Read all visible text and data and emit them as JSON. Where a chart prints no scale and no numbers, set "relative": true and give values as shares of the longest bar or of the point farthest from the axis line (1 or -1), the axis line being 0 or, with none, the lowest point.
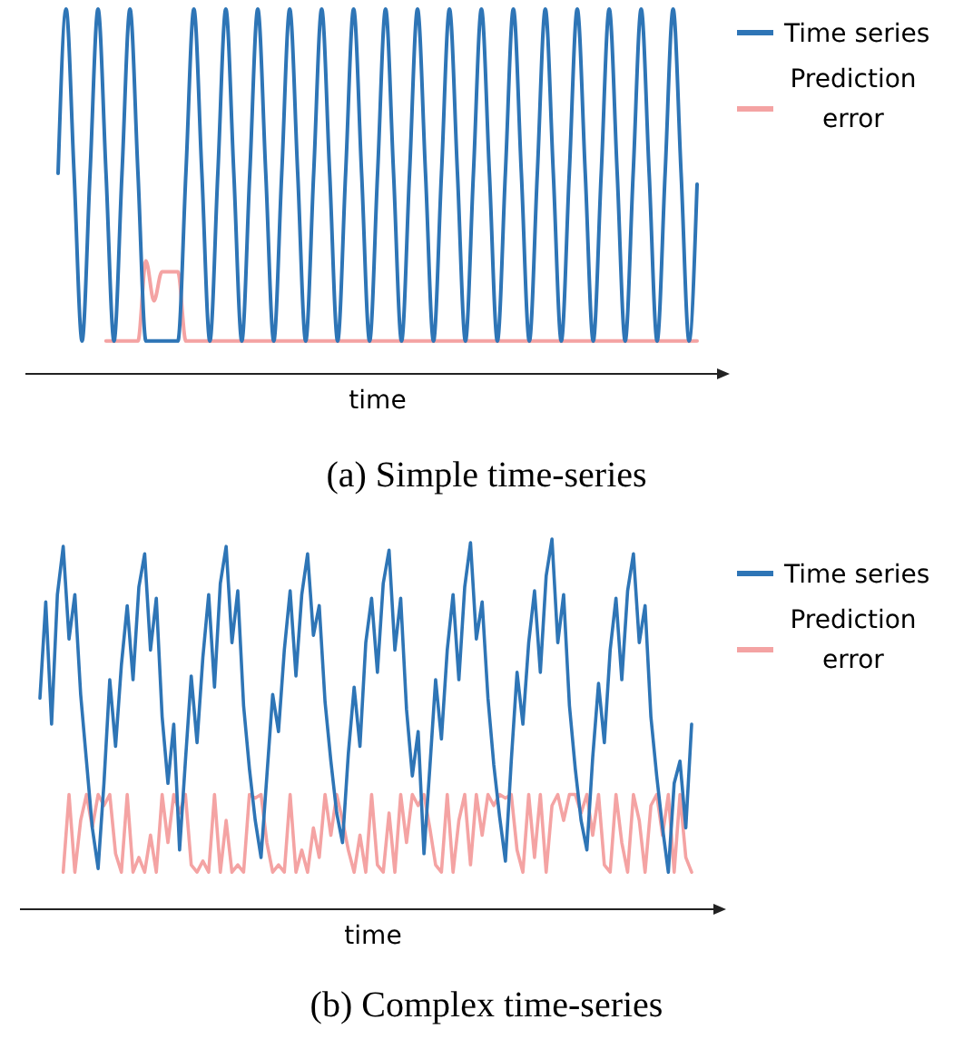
{
  "chart_data": [
    {
      "type": "line",
      "title": "(a) Simple time-series",
      "xlabel": "time",
      "relative": true,
      "legend": "right",
      "categories": [
        null,
        null,
        null,
        null,
        null,
        null,
        null,
        null,
        null,
        null,
        null,
        null,
        null,
        null,
        null,
        null,
        null,
        null,
        null,
        null,
        null,
        null,
        null,
        null,
        null,
        null,
        null,
        null,
        null,
        null,
        null,
        null,
        null,
        null,
        null,
        null,
        null,
        null,
        null,
        null,
        null,
        null,
        null,
        null,
        null,
        null,
        null,
        null,
        null,
        null,
        null,
        null,
        null,
        null,
        null,
        null,
        null,
        null,
        null,
        null,
        null,
        null,
        null,
        null,
        null,
        null,
        null,
        null,
        null,
        null,
        null,
        null,
        null,
        null,
        null,
        null,
        null,
        null,
        null,
        null,
        null
      ],
      "series": [
        {
          "name": "Prediction error",
          "color": "#f4a3a3",
          "values": [
            null,
            null,
            null,
            null,
            null,
            null,
            0.09,
            0.09,
            0.09,
            0.09,
            0.09,
            0.31,
            0.2,
            0.28,
            0.28,
            0.28,
            0.09,
            0.09,
            0.09,
            0.09,
            0.09,
            0.09,
            0.09,
            0.09,
            0.09,
            0.09,
            0.09,
            0.09,
            0.09,
            0.09,
            0.09,
            0.09,
            0.09,
            0.09,
            0.09,
            0.09,
            0.09,
            0.09,
            0.09,
            0.09,
            0.09,
            0.09,
            0.09,
            0.09,
            0.09,
            0.09,
            0.09,
            0.09,
            0.09,
            0.09,
            0.09,
            0.09,
            0.09,
            0.09,
            0.09,
            0.09,
            0.09,
            0.09,
            0.09,
            0.09,
            0.09,
            0.09,
            0.09,
            0.09,
            0.09,
            0.09,
            0.09,
            0.09,
            0.09,
            0.09,
            0.09,
            0.09,
            0.09,
            0.09,
            0.09,
            0.09,
            0.09,
            0.09,
            0.09,
            0.09,
            0.09
          ]
        },
        {
          "name": "Time series",
          "color": "#2e75b6",
          "values": [
            0.55,
            1,
            0.55,
            0.09,
            0.55,
            1,
            0.55,
            0.09,
            0.55,
            1,
            0.55,
            0.09,
            0.09,
            0.09,
            0.09,
            0.09,
            0.55,
            1,
            0.55,
            0.09,
            0.55,
            1,
            0.55,
            0.09,
            0.55,
            1,
            0.55,
            0.09,
            0.55,
            1,
            0.55,
            0.09,
            0.55,
            1,
            0.55,
            0.09,
            0.55,
            1,
            0.55,
            0.09,
            0.55,
            1,
            0.55,
            0.09,
            0.55,
            1,
            0.55,
            0.09,
            0.55,
            1,
            0.55,
            0.09,
            0.55,
            1,
            0.55,
            0.09,
            0.55,
            1,
            0.55,
            0.09,
            0.55,
            1,
            0.55,
            0.09,
            0.55,
            1,
            0.55,
            0.09,
            0.55,
            1,
            0.55,
            0.09,
            0.55,
            1,
            0.55,
            0.09,
            0.55,
            1,
            0.55,
            0.09,
            0.52
          ]
        }
      ]
    },
    {
      "type": "line",
      "title": "(b) Complex time-series",
      "xlabel": "time",
      "relative": true,
      "legend": "right",
      "categories": [
        null,
        null,
        null,
        null,
        null,
        null,
        null,
        null,
        null,
        null,
        null,
        null,
        null,
        null,
        null,
        null,
        null,
        null,
        null,
        null,
        null,
        null,
        null,
        null,
        null,
        null,
        null,
        null,
        null,
        null,
        null,
        null,
        null,
        null,
        null,
        null,
        null,
        null,
        null,
        null,
        null,
        null,
        null,
        null,
        null,
        null,
        null,
        null,
        null,
        null,
        null,
        null,
        null,
        null,
        null,
        null,
        null,
        null,
        null,
        null,
        null,
        null,
        null,
        null,
        null,
        null,
        null,
        null,
        null,
        null,
        null,
        null,
        null,
        null,
        null,
        null,
        null,
        null,
        null,
        null,
        null,
        null,
        null,
        null,
        null,
        null,
        null,
        null,
        null,
        null,
        null,
        null,
        null,
        null,
        null,
        null,
        null,
        null,
        null,
        null,
        null,
        null,
        null,
        null,
        null,
        null,
        null,
        null,
        null,
        null,
        null,
        null,
        null
      ],
      "series": [
        {
          "name": "Prediction error",
          "color": "#f4a3a3",
          "values": [
            null,
            null,
            null,
            null,
            0.1,
            0.31,
            0.1,
            0.24,
            0.31,
            0.22,
            0.31,
            0.28,
            0.31,
            0.15,
            0.1,
            0.31,
            0.1,
            0.14,
            0.1,
            0.2,
            0.1,
            0.31,
            0.18,
            0.31,
            0.26,
            0.31,
            0.12,
            0.1,
            0.13,
            0.1,
            0.31,
            0.1,
            0.24,
            0.1,
            0.12,
            0.1,
            0.31,
            0.3,
            0.31,
            0.18,
            0.1,
            0.12,
            0.1,
            0.31,
            0.1,
            0.16,
            0.1,
            0.22,
            0.14,
            0.31,
            0.2,
            0.31,
            0.24,
            0.16,
            0.1,
            0.2,
            0.1,
            0.31,
            0.12,
            0.1,
            0.26,
            0.1,
            0.31,
            0.18,
            0.31,
            0.28,
            0.31,
            0.22,
            0.12,
            0.1,
            0.31,
            0.1,
            0.24,
            0.31,
            0.12,
            0.31,
            0.2,
            0.31,
            0.28,
            0.31,
            0.3,
            0.31,
            0.16,
            0.1,
            0.31,
            0.14,
            0.31,
            0.1,
            0.28,
            0.31,
            0.24,
            0.31,
            0.31,
            0.26,
            0.31,
            0.2,
            0.31,
            0.12,
            0.1,
            0.31,
            0.18,
            0.1,
            0.31,
            0.24,
            0.1,
            0.28,
            0.31,
            0.2,
            0.31,
            0.1,
            0.31,
            0.14,
            0.1
          ]
        },
        {
          "name": "Time series",
          "color": "#2e75b6",
          "values": [
            0.57,
            0.83,
            0.5,
            0.85,
            0.98,
            0.73,
            0.85,
            0.58,
            0.4,
            0.22,
            0.11,
            0.34,
            0.62,
            0.44,
            0.66,
            0.82,
            0.62,
            0.87,
            0.96,
            0.7,
            0.84,
            0.52,
            0.34,
            0.5,
            0.16,
            0.4,
            0.63,
            0.45,
            0.68,
            0.85,
            0.6,
            0.88,
            0.98,
            0.72,
            0.86,
            0.55,
            0.38,
            0.24,
            0.14,
            0.36,
            0.58,
            0.48,
            0.7,
            0.86,
            0.63,
            0.85,
            0.96,
            0.74,
            0.82,
            0.56,
            0.4,
            0.26,
            0.18,
            0.42,
            0.6,
            0.44,
            0.72,
            0.84,
            0.64,
            0.88,
            0.97,
            0.7,
            0.84,
            0.54,
            0.36,
            0.48,
            0.15,
            0.38,
            0.62,
            0.46,
            0.7,
            0.85,
            0.62,
            0.87,
            0.99,
            0.73,
            0.83,
            0.57,
            0.39,
            0.25,
            0.13,
            0.4,
            0.64,
            0.5,
            0.72,
            0.86,
            0.64,
            0.9,
            1.0,
            0.72,
            0.85,
            0.55,
            0.38,
            0.24,
            0.16,
            0.41,
            0.61,
            0.45,
            0.7,
            0.84,
            0.62,
            0.86,
            0.96,
            0.72,
            0.82,
            0.52,
            0.36,
            0.22,
            0.1,
            0.34,
            0.4,
            0.22,
            0.5
          ]
        }
      ]
    }
  ]
}
